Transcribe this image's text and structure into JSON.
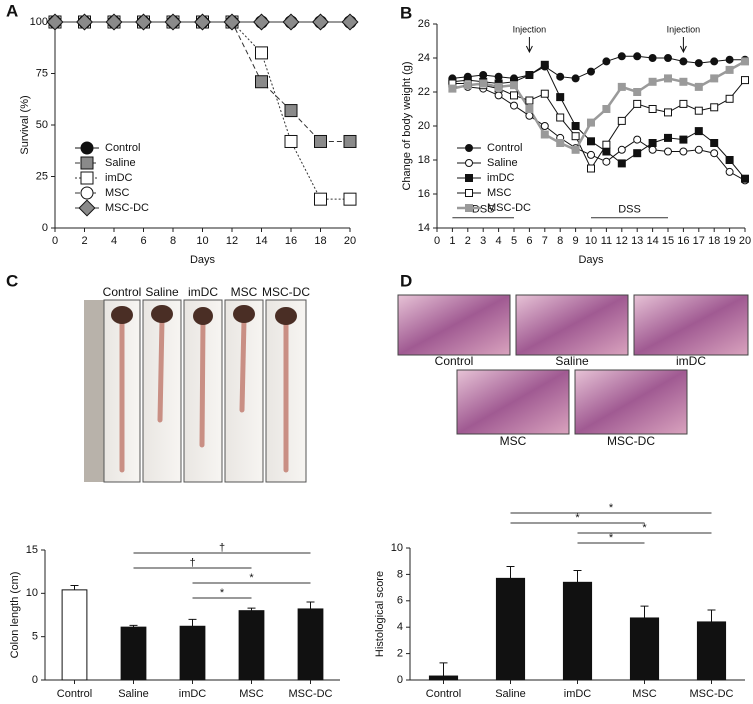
{
  "chart_data": [
    {
      "panel": "A",
      "type": "line",
      "x_label": "Days",
      "y_label": "Survival (%)",
      "x": [
        0,
        2,
        4,
        6,
        8,
        10,
        12,
        14,
        16,
        18,
        20
      ],
      "xlim": [
        0,
        20
      ],
      "xticks": [
        0,
        2,
        4,
        6,
        8,
        10,
        12,
        14,
        16,
        18,
        20
      ],
      "ylim": [
        0,
        100
      ],
      "yticks": [
        0,
        25,
        50,
        75,
        100
      ],
      "legend": "lower left",
      "series": [
        {
          "name": "Control",
          "color": "#111111",
          "marker": "circle",
          "fill": "#111111",
          "line_style": "solid",
          "values": [
            100,
            100,
            100,
            100,
            100,
            100,
            100,
            100,
            100,
            100,
            100
          ]
        },
        {
          "name": "Saline",
          "color": "#333333",
          "marker": "square",
          "fill": "#8a8a8a",
          "line_style": "dashed",
          "values": [
            100,
            100,
            100,
            100,
            100,
            100,
            100,
            71,
            57,
            42,
            42
          ]
        },
        {
          "name": "imDC",
          "color": "#333333",
          "marker": "square",
          "fill": "#ffffff",
          "line_style": "dotted",
          "values": [
            100,
            100,
            100,
            100,
            100,
            100,
            100,
            85,
            42,
            14,
            14
          ]
        },
        {
          "name": "MSC",
          "color": "#333333",
          "marker": "circle",
          "fill": "#ffffff",
          "line_style": "dashed",
          "values": [
            100,
            100,
            100,
            100,
            100,
            100,
            100,
            100,
            100,
            100,
            100
          ]
        },
        {
          "name": "MSC-DC",
          "color": "#333333",
          "marker": "diamond",
          "fill": "#8a8a8a",
          "line_style": "solid",
          "values": [
            100,
            100,
            100,
            100,
            100,
            100,
            100,
            100,
            100,
            100,
            100
          ]
        }
      ]
    },
    {
      "panel": "B",
      "type": "line",
      "x_label": "Days",
      "y_label": "Change of body weight (g)",
      "x": [
        1,
        2,
        3,
        4,
        5,
        6,
        7,
        8,
        9,
        10,
        11,
        12,
        13,
        14,
        15,
        16,
        17,
        18,
        19,
        20
      ],
      "xlim": [
        0,
        20
      ],
      "xticks": [
        0,
        1,
        2,
        3,
        4,
        5,
        6,
        7,
        8,
        9,
        10,
        11,
        12,
        13,
        14,
        15,
        16,
        17,
        18,
        19,
        20
      ],
      "ylim": [
        14,
        26
      ],
      "yticks": [
        14,
        16,
        18,
        20,
        22,
        24,
        26
      ],
      "legend": "lower left",
      "annotations": [
        {
          "text": "Injection",
          "x": 6
        },
        {
          "text": "Injection",
          "x": 16
        }
      ],
      "spans": [
        {
          "text": "DSS",
          "from": 1,
          "to": 5
        },
        {
          "text": "DSS",
          "from": 10,
          "to": 15
        }
      ],
      "series": [
        {
          "name": "Control",
          "color": "#111111",
          "marker": "circle",
          "fill": "#111111",
          "line_style": "solid",
          "values": [
            22.8,
            22.9,
            23.0,
            22.9,
            22.8,
            23.0,
            23.5,
            22.9,
            22.8,
            23.2,
            23.8,
            24.1,
            24.1,
            24.0,
            24.0,
            23.8,
            23.7,
            23.8,
            23.9,
            23.9
          ]
        },
        {
          "name": "Saline",
          "color": "#111111",
          "marker": "circle",
          "fill": "#ffffff",
          "line_style": "solid",
          "values": [
            22.3,
            22.3,
            22.2,
            21.8,
            21.2,
            20.6,
            20.0,
            19.3,
            18.7,
            18.3,
            17.9,
            18.6,
            19.2,
            18.6,
            18.5,
            18.5,
            18.6,
            18.4,
            17.3,
            16.8
          ]
        },
        {
          "name": "imDC",
          "color": "#111111",
          "marker": "square",
          "fill": "#111111",
          "line_style": "solid",
          "values": [
            22.6,
            22.7,
            22.6,
            22.5,
            22.6,
            23.0,
            23.6,
            21.7,
            20.0,
            19.1,
            18.5,
            17.8,
            18.4,
            19.0,
            19.3,
            19.2,
            19.7,
            19.0,
            18.0,
            16.9
          ]
        },
        {
          "name": "MSC",
          "color": "#111111",
          "marker": "square",
          "fill": "#ffffff",
          "line_style": "solid",
          "values": [
            22.5,
            22.5,
            22.4,
            22.2,
            21.8,
            21.5,
            21.9,
            20.5,
            19.4,
            17.5,
            18.9,
            20.3,
            21.3,
            21.0,
            20.8,
            21.3,
            20.9,
            21.1,
            21.6,
            22.7
          ]
        },
        {
          "name": "MSC-DC",
          "color": "#9a9a9a",
          "marker": "square",
          "fill": "#9a9a9a",
          "line_style": "solid",
          "values": [
            22.2,
            22.4,
            22.5,
            22.3,
            22.4,
            21.0,
            19.5,
            19.0,
            18.6,
            20.2,
            21.0,
            22.3,
            22.0,
            22.6,
            22.8,
            22.6,
            22.3,
            22.8,
            23.3,
            23.8
          ]
        }
      ]
    },
    {
      "panel": "C",
      "type": "bar",
      "y_label": "Colon length (cm)",
      "categories": [
        "Control",
        "Saline",
        "imDC",
        "MSC",
        "MSC-DC"
      ],
      "values": [
        10.4,
        6.1,
        6.2,
        8.0,
        8.2
      ],
      "errors": [
        0.5,
        0.2,
        0.8,
        0.3,
        0.8
      ],
      "colors": [
        "#ffffff",
        "#111111",
        "#111111",
        "#111111",
        "#111111"
      ],
      "ylim": [
        0,
        15
      ],
      "yticks": [
        0,
        5,
        10,
        15
      ],
      "brackets": [
        {
          "from": 1,
          "to": 4,
          "label": "†"
        },
        {
          "from": 1,
          "to": 3,
          "label": "†"
        },
        {
          "from": 2,
          "to": 4,
          "label": "*"
        },
        {
          "from": 2,
          "to": 3,
          "label": "*"
        }
      ],
      "photo_labels": [
        "Control",
        "Saline",
        "imDC",
        "MSC",
        "MSC-DC"
      ]
    },
    {
      "panel": "D",
      "type": "bar",
      "y_label": "Histological score",
      "categories": [
        "Control",
        "Saline",
        "imDC",
        "MSC",
        "MSC-DC"
      ],
      "values": [
        0.3,
        7.7,
        7.4,
        4.7,
        4.4
      ],
      "errors": [
        1.0,
        0.9,
        0.9,
        0.9,
        0.9
      ],
      "colors": [
        "#111111",
        "#111111",
        "#111111",
        "#111111",
        "#111111"
      ],
      "ylim": [
        0,
        10
      ],
      "yticks": [
        0,
        2,
        4,
        6,
        8,
        10
      ],
      "brackets": [
        {
          "from": 1,
          "to": 4,
          "label": "*"
        },
        {
          "from": 1,
          "to": 3,
          "label": "*"
        },
        {
          "from": 2,
          "to": 4,
          "label": "*"
        },
        {
          "from": 2,
          "to": 3,
          "label": "*"
        }
      ],
      "photo_labels": [
        "Control",
        "Saline",
        "imDC",
        "MSC",
        "MSC-DC"
      ]
    }
  ]
}
